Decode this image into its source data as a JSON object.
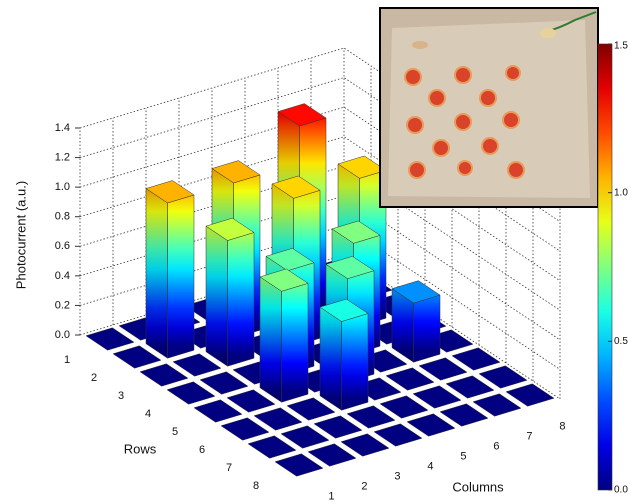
{
  "chart_data": {
    "type": "bar3d",
    "z_label": "Photocurrent (a.u.)",
    "row_label": "Rows",
    "column_label": "Columns",
    "rows": [
      1,
      2,
      3,
      4,
      5,
      6,
      7,
      8
    ],
    "columns": [
      1,
      2,
      3,
      4,
      5,
      6,
      7,
      8
    ],
    "values": [
      [
        0,
        0,
        0,
        0,
        0,
        0,
        0,
        0
      ],
      [
        0,
        1.05,
        0,
        1.05,
        0,
        1.3,
        0,
        0
      ],
      [
        0,
        0,
        0.85,
        0,
        1.0,
        0,
        1.0,
        0
      ],
      [
        0,
        0,
        0,
        0.7,
        0,
        0.75,
        0,
        0
      ],
      [
        0,
        0,
        0.75,
        0,
        0.7,
        0,
        0.4,
        0
      ],
      [
        0,
        0,
        0,
        0.6,
        0,
        0,
        0,
        0
      ],
      [
        0,
        0,
        0,
        0,
        0,
        0,
        0,
        0
      ],
      [
        0,
        0,
        0,
        0,
        0,
        0,
        0,
        0
      ]
    ],
    "zlim": [
      0,
      1.4
    ],
    "zticks": [
      {
        "value": 0,
        "label": "0.0"
      },
      {
        "value": 0.2,
        "label": "0.2"
      },
      {
        "value": 0.4,
        "label": "0.4"
      },
      {
        "value": 0.6,
        "label": "0.6"
      },
      {
        "value": 0.8,
        "label": "0.8"
      },
      {
        "value": 1.0,
        "label": "1.0"
      },
      {
        "value": 1.2,
        "label": "1.2"
      },
      {
        "value": 1.4,
        "label": "1.4"
      }
    ],
    "colorbar": {
      "colormap": "jet",
      "clim": [
        0,
        1.5
      ],
      "ticks": [
        {
          "value": 0,
          "label": "0.0"
        },
        {
          "value": 0.5,
          "label": "0.5"
        },
        {
          "value": 1.0,
          "label": "1.0"
        },
        {
          "value": 1.5,
          "label": "1.5"
        }
      ]
    },
    "grid": true
  }
}
